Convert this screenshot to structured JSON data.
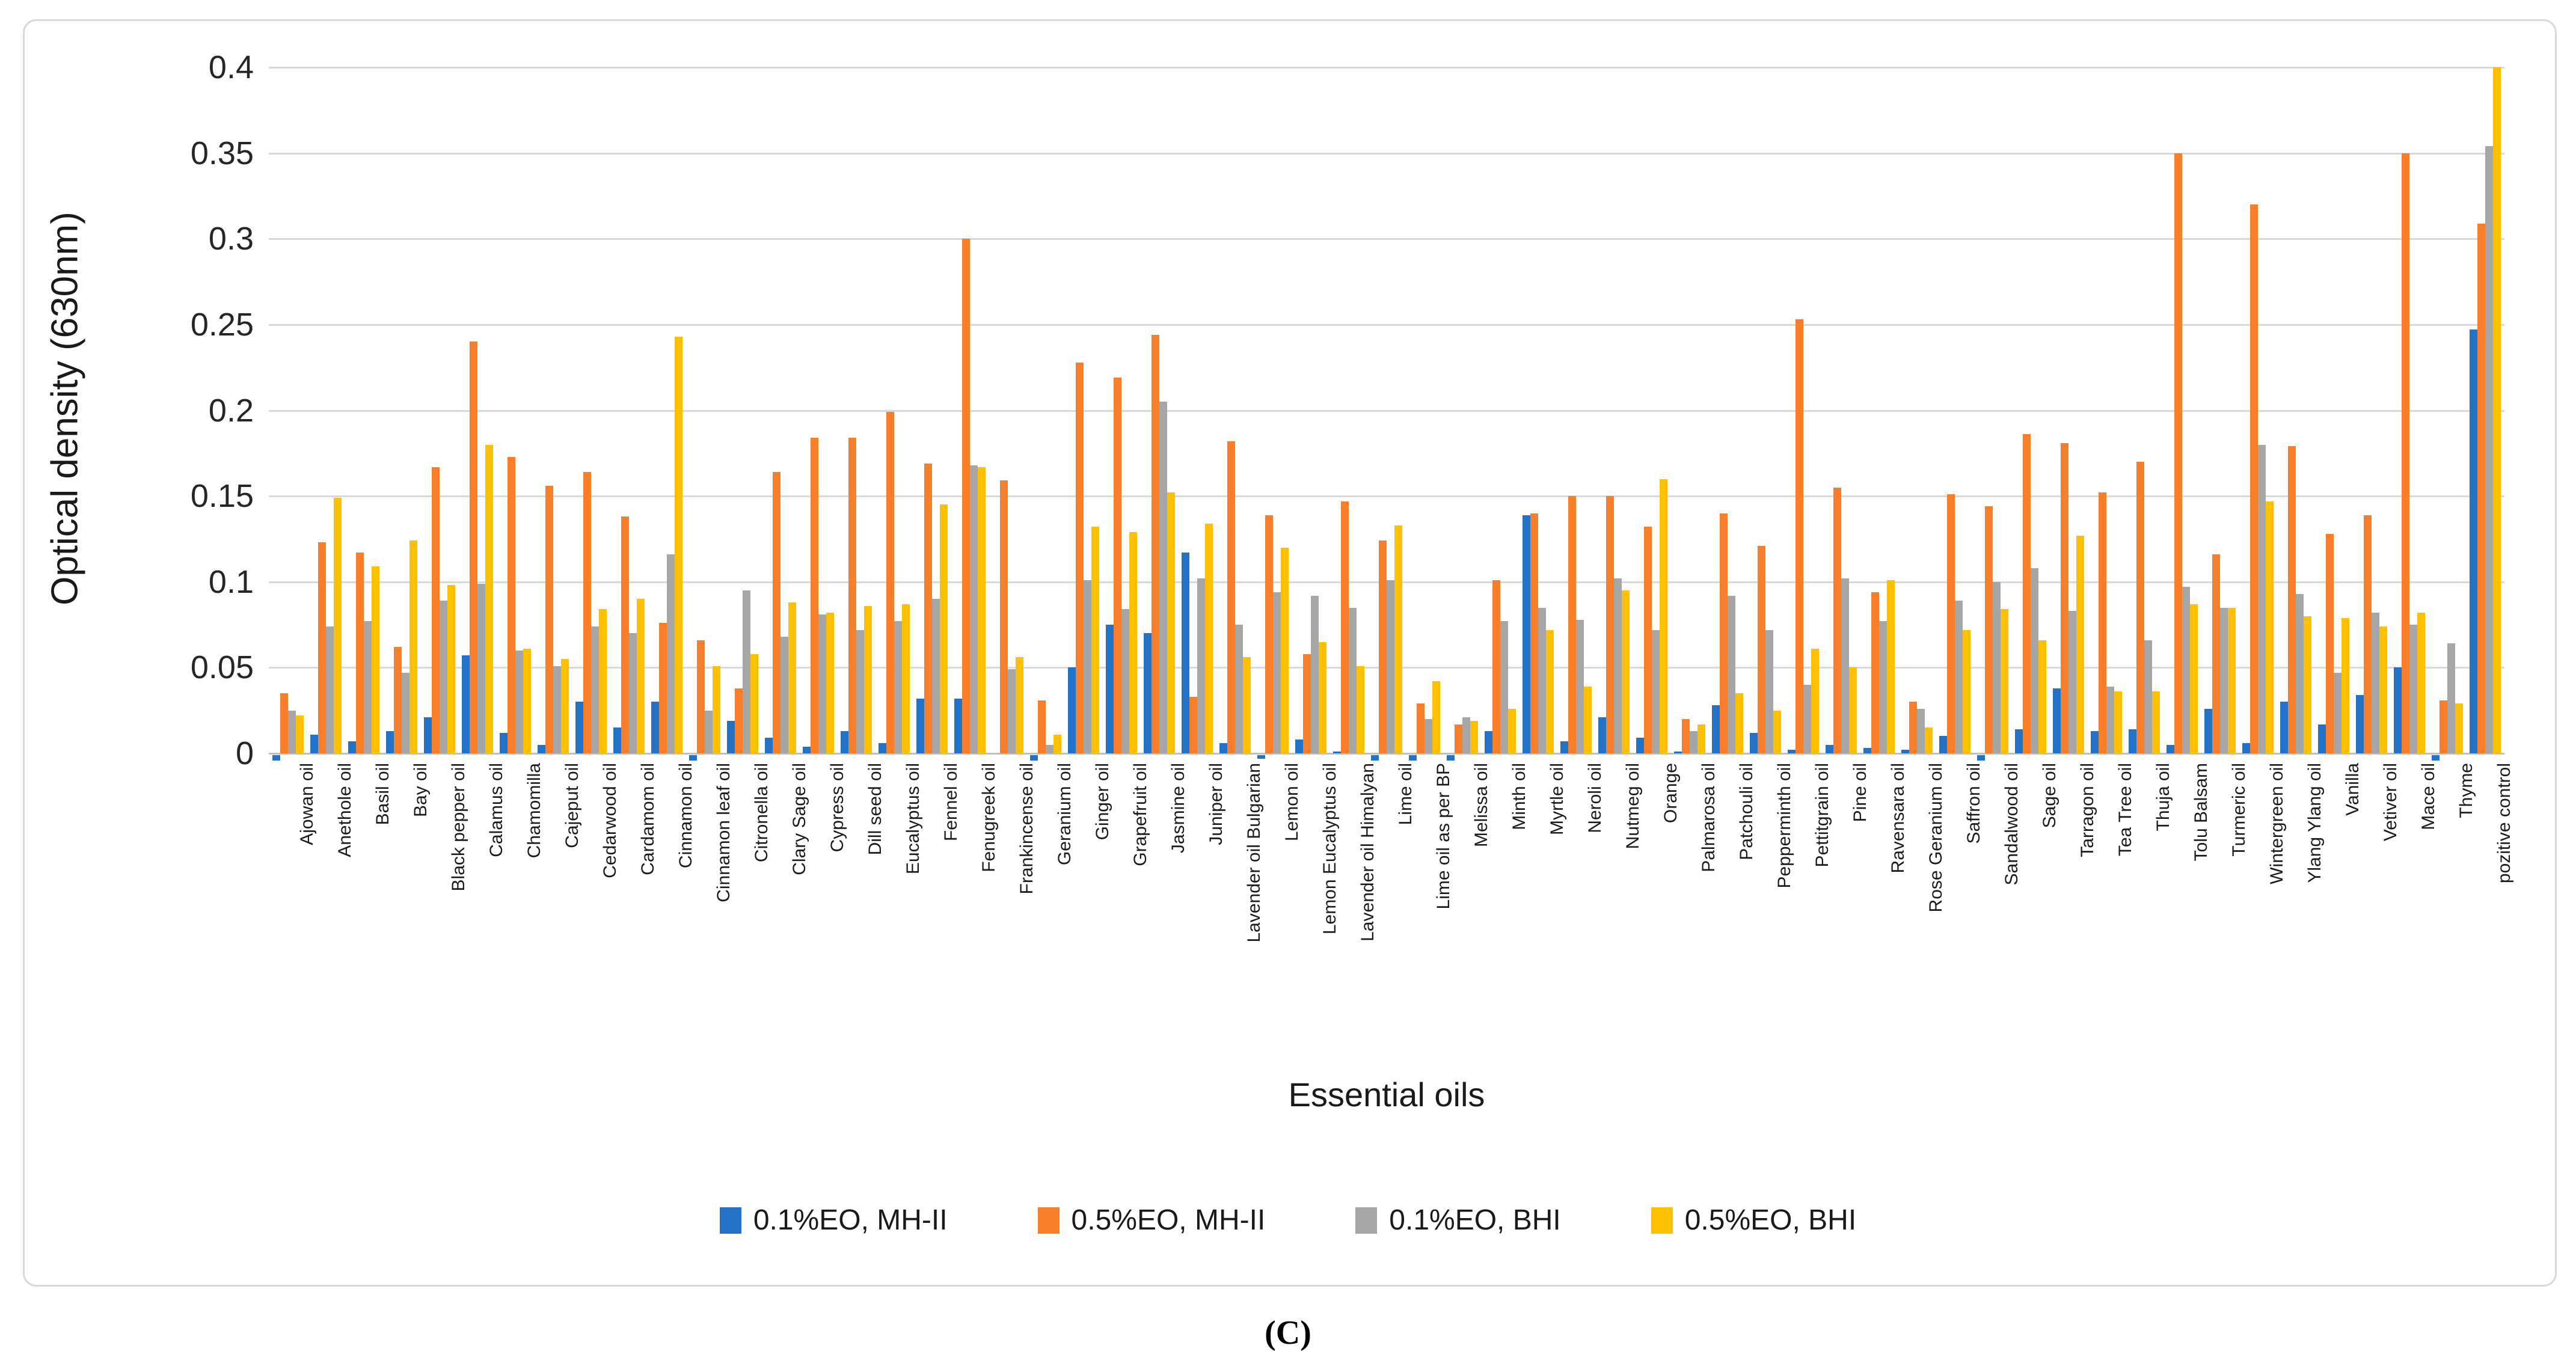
{
  "figure": {
    "caption": "(C)"
  },
  "chart_data": {
    "type": "bar",
    "title": "",
    "xlabel": "Essential oils",
    "ylabel": "Optical density (630nm)",
    "ylim": [
      0,
      0.4
    ],
    "ytick_step": 0.05,
    "yticks": [
      "0",
      "0.05",
      "0.1",
      "0.15",
      "0.2",
      "0.25",
      "0.3",
      "0.35",
      "0.4"
    ],
    "grid": "horizontal",
    "legend_position": "bottom",
    "categories": [
      "Ajowan oil",
      "Anethole oil",
      "Basil oil",
      "Bay oil",
      "Black pepper oil",
      "Calamus oil",
      "Chamomilla",
      "Cajeput oil",
      "Cedarwood oil",
      "Cardamom oil",
      "Cinnamon oil",
      "Cinnamon leaf oil",
      "Citronella oil",
      "Clary Sage oil",
      "Cypress oil",
      "Dill seed oil",
      "Eucalyptus oil",
      "Fennel oil",
      "Fenugreek oil",
      "Frankincense oil",
      "Geranium oil",
      "Ginger oil",
      "Grapefruit oil",
      "Jasmine oil",
      "Juniper oil",
      "Lavender oil Bulgarian",
      "Lemon oil",
      "Lemon Eucalyptus oil",
      "Lavender oil Himalyan",
      "Lime oil",
      "Lime oil as per BP",
      "Melissa oil",
      "Minth oil",
      "Myrtle oil",
      "Neroli oil",
      "Nutmeg oil",
      "Orange",
      "Palmarosa oil",
      "Patchouli oil",
      "Pepperminth oil",
      "Pettitgrain oil",
      "Pine oil",
      "Ravensara oil",
      "Rose Geranium oil",
      "Saffron oil",
      "Sandalwood oil",
      "Sage oil",
      "Tarragon oil",
      "Tea Tree oil",
      "Thuja oil",
      "Tolu Balsam",
      "Turmeric oil",
      "Wintergreen oil",
      "Ylang Ylang oil",
      "Vanilla",
      "Vetiver oil",
      "Mace oil",
      "Thyme",
      "pozitive control"
    ],
    "series": [
      {
        "name": "0.1%EO, MH-II",
        "color": "#2272c8",
        "values": [
          -0.003,
          0.011,
          0.007,
          0.013,
          0.021,
          0.057,
          0.012,
          0.005,
          0.03,
          0.015,
          0.03,
          -0.003,
          0.019,
          0.009,
          0.004,
          0.013,
          0.006,
          0.032,
          0.032,
          0,
          -0.003,
          0.05,
          0.075,
          0.07,
          0.117,
          0.006,
          -0.002,
          0.008,
          0.001,
          -0.003,
          -0.003,
          -0.003,
          0.013,
          0.139,
          0.007,
          0.021,
          0.009,
          0.001,
          0.028,
          0.012,
          0.002,
          0.005,
          0.003,
          0.002,
          0.01,
          -0.003,
          0.014,
          0.038,
          0.013,
          0.014,
          0.005,
          0.026,
          0.006,
          0.03,
          0.017,
          0.034,
          0.05,
          -0.003,
          0.247
        ]
      },
      {
        "name": "0.5%EO, MH-II",
        "color": "#f87e2a",
        "values": [
          0.035,
          0.123,
          0.117,
          0.062,
          0.167,
          0.24,
          0.173,
          0.156,
          0.164,
          0.138,
          0.076,
          0.066,
          0.038,
          0.164,
          0.184,
          0.184,
          0.199,
          0.169,
          0.3,
          0.159,
          0.031,
          0.228,
          0.219,
          0.244,
          0.033,
          0.182,
          0.139,
          0.058,
          0.147,
          0.124,
          0.029,
          0.017,
          0.101,
          0.14,
          0.15,
          0.15,
          0.132,
          0.02,
          0.14,
          0.121,
          0.253,
          0.155,
          0.094,
          0.03,
          0.151,
          0.144,
          0.186,
          0.181,
          0.152,
          0.17,
          0.35,
          0.116,
          0.32,
          0.179,
          0.128,
          0.139,
          0.35,
          0.031,
          0.309
        ]
      },
      {
        "name": "0.1%EO, BHI",
        "color": "#a6a6a6",
        "values": [
          0.025,
          0.074,
          0.077,
          0.047,
          0.089,
          0.099,
          0.06,
          0.051,
          0.074,
          0.07,
          0.116,
          0.025,
          0.095,
          0.068,
          0.081,
          0.072,
          0.077,
          0.09,
          0.168,
          0.049,
          0.005,
          0.101,
          0.084,
          0.205,
          0.102,
          0.075,
          0.094,
          0.092,
          0.085,
          0.101,
          0.02,
          0.021,
          0.077,
          0.085,
          0.078,
          0.102,
          0.072,
          0.013,
          0.092,
          0.072,
          0.04,
          0.102,
          0.077,
          0.026,
          0.089,
          0.1,
          0.108,
          0.083,
          0.039,
          0.066,
          0.097,
          0.085,
          0.18,
          0.093,
          0.047,
          0.082,
          0.075,
          0.064,
          0.354
        ]
      },
      {
        "name": "0.5%EO, BHI",
        "color": "#fec000",
        "values": [
          0.022,
          0.149,
          0.109,
          0.124,
          0.098,
          0.18,
          0.061,
          0.055,
          0.084,
          0.09,
          0.243,
          0.051,
          0.058,
          0.088,
          0.082,
          0.086,
          0.087,
          0.145,
          0.167,
          0.056,
          0.011,
          0.132,
          0.129,
          0.152,
          0.134,
          0.056,
          0.12,
          0.065,
          0.051,
          0.133,
          0.042,
          0.019,
          0.026,
          0.072,
          0.039,
          0.095,
          0.16,
          0.017,
          0.035,
          0.025,
          0.061,
          0.05,
          0.101,
          0.015,
          0.072,
          0.084,
          0.066,
          0.127,
          0.036,
          0.036,
          0.087,
          0.085,
          0.147,
          0.08,
          0.079,
          0.074,
          0.082,
          0.029,
          0.4
        ]
      }
    ]
  }
}
